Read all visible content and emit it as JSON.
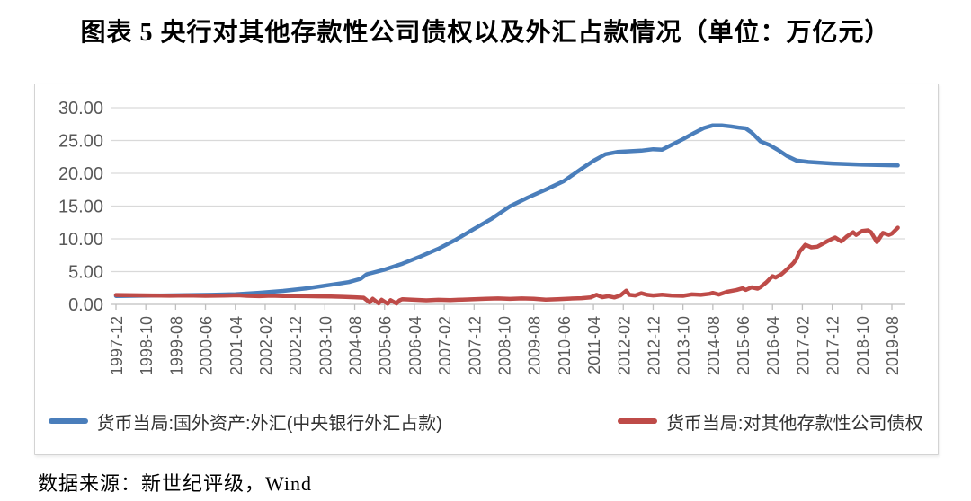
{
  "title": "图表 5  央行对其他存款性公司债权以及外汇占款情况（单位：万亿元）",
  "source_text": "数据来源：新世纪评级，Wind",
  "chart_data": {
    "type": "line",
    "title": "图表 5  央行对其他存款性公司债权以及外汇占款情况（单位：万亿元）",
    "unit": "万亿元",
    "ylim": [
      0,
      30
    ],
    "ytick_step": 5,
    "ytick_labels": [
      "0.00",
      "5.00",
      "10.00",
      "15.00",
      "20.00",
      "25.00",
      "30.00"
    ],
    "xtick_labels": [
      "1997-12",
      "1998-10",
      "1999-08",
      "2000-06",
      "2001-04",
      "2002-02",
      "2002-12",
      "2003-10",
      "2004-08",
      "2005-06",
      "2006-04",
      "2007-02",
      "2007-12",
      "2008-10",
      "2009-08",
      "2010-06",
      "2011-04",
      "2012-02",
      "2012-12",
      "2013-10",
      "2014-08",
      "2015-06",
      "2016-04",
      "2017-02",
      "2017-12",
      "2018-10",
      "2019-08"
    ],
    "xtick_month_interval": 10,
    "x_axis_note": "points are [months since 1997-12, value in trillion yuan]",
    "grid": "horizontal",
    "legend_position": "bottom",
    "colors": {
      "fx_blue": "#4a7ebb",
      "claims_red": "#be4b48",
      "grid": "#d9d9d9",
      "axis": "#bfbfbf",
      "tick_label": "#595959"
    },
    "series": [
      {
        "name": "货币当局:国外资产:外汇(中央银行外汇占款)",
        "color_key": "fx_blue",
        "points_month_value": [
          [
            0,
            1.28
          ],
          [
            8,
            1.31
          ],
          [
            16,
            1.36
          ],
          [
            24,
            1.41
          ],
          [
            32,
            1.45
          ],
          [
            40,
            1.55
          ],
          [
            48,
            1.77
          ],
          [
            56,
            2.05
          ],
          [
            64,
            2.45
          ],
          [
            72,
            2.98
          ],
          [
            78,
            3.4
          ],
          [
            82,
            3.9
          ],
          [
            84,
            4.59
          ],
          [
            90,
            5.3
          ],
          [
            96,
            6.21
          ],
          [
            102,
            7.3
          ],
          [
            108,
            8.48
          ],
          [
            114,
            9.9
          ],
          [
            120,
            11.52
          ],
          [
            126,
            13.1
          ],
          [
            132,
            14.96
          ],
          [
            138,
            16.3
          ],
          [
            144,
            17.51
          ],
          [
            150,
            18.8
          ],
          [
            156,
            20.68
          ],
          [
            160,
            21.9
          ],
          [
            164,
            22.9
          ],
          [
            168,
            23.24
          ],
          [
            172,
            23.35
          ],
          [
            176,
            23.45
          ],
          [
            180,
            23.67
          ],
          [
            183,
            23.6
          ],
          [
            186,
            24.3
          ],
          [
            190,
            25.2
          ],
          [
            194,
            26.2
          ],
          [
            197,
            26.9
          ],
          [
            200,
            27.3
          ],
          [
            203,
            27.3
          ],
          [
            206,
            27.15
          ],
          [
            209,
            26.95
          ],
          [
            211,
            26.85
          ],
          [
            213,
            26.2
          ],
          [
            216,
            24.85
          ],
          [
            219,
            24.3
          ],
          [
            222,
            23.5
          ],
          [
            225,
            22.6
          ],
          [
            228,
            21.94
          ],
          [
            232,
            21.72
          ],
          [
            236,
            21.6
          ],
          [
            240,
            21.5
          ],
          [
            245,
            21.4
          ],
          [
            250,
            21.32
          ],
          [
            255,
            21.26
          ],
          [
            262,
            21.2
          ]
        ]
      },
      {
        "name": "货币当局:对其他存款性公司债权",
        "color_key": "claims_red",
        "points_month_value": [
          [
            0,
            1.42
          ],
          [
            6,
            1.38
          ],
          [
            12,
            1.35
          ],
          [
            18,
            1.32
          ],
          [
            24,
            1.35
          ],
          [
            30,
            1.3
          ],
          [
            36,
            1.33
          ],
          [
            41,
            1.38
          ],
          [
            44,
            1.3
          ],
          [
            48,
            1.25
          ],
          [
            52,
            1.32
          ],
          [
            56,
            1.28
          ],
          [
            60,
            1.26
          ],
          [
            64,
            1.24
          ],
          [
            68,
            1.22
          ],
          [
            72,
            1.2
          ],
          [
            76,
            1.15
          ],
          [
            80,
            1.08
          ],
          [
            83,
            1.02
          ],
          [
            85,
            0.3
          ],
          [
            86,
            0.85
          ],
          [
            88,
            0.15
          ],
          [
            89,
            0.7
          ],
          [
            91,
            0.1
          ],
          [
            92,
            0.65
          ],
          [
            94,
            0.12
          ],
          [
            95,
            0.6
          ],
          [
            96,
            0.8
          ],
          [
            100,
            0.7
          ],
          [
            104,
            0.62
          ],
          [
            108,
            0.7
          ],
          [
            112,
            0.66
          ],
          [
            116,
            0.72
          ],
          [
            120,
            0.79
          ],
          [
            124,
            0.85
          ],
          [
            128,
            0.9
          ],
          [
            132,
            0.84
          ],
          [
            136,
            0.9
          ],
          [
            140,
            0.86
          ],
          [
            144,
            0.72
          ],
          [
            148,
            0.8
          ],
          [
            152,
            0.88
          ],
          [
            156,
            0.94
          ],
          [
            159,
            1.05
          ],
          [
            161,
            1.45
          ],
          [
            163,
            1.1
          ],
          [
            165,
            1.25
          ],
          [
            167,
            1.05
          ],
          [
            169,
            1.35
          ],
          [
            171,
            2.1
          ],
          [
            172,
            1.45
          ],
          [
            174,
            1.35
          ],
          [
            176,
            1.7
          ],
          [
            178,
            1.45
          ],
          [
            180,
            1.35
          ],
          [
            183,
            1.48
          ],
          [
            186,
            1.35
          ],
          [
            190,
            1.3
          ],
          [
            193,
            1.52
          ],
          [
            196,
            1.45
          ],
          [
            199,
            1.62
          ],
          [
            200,
            1.75
          ],
          [
            202,
            1.5
          ],
          [
            205,
            1.95
          ],
          [
            208,
            2.2
          ],
          [
            210,
            2.45
          ],
          [
            211,
            2.2
          ],
          [
            213,
            2.6
          ],
          [
            215,
            2.4
          ],
          [
            216,
            2.66
          ],
          [
            218,
            3.4
          ],
          [
            220,
            4.3
          ],
          [
            221,
            4.1
          ],
          [
            223,
            4.6
          ],
          [
            225,
            5.4
          ],
          [
            227,
            6.3
          ],
          [
            228,
            6.9
          ],
          [
            229,
            8.0
          ],
          [
            231,
            9.1
          ],
          [
            233,
            8.7
          ],
          [
            235,
            8.8
          ],
          [
            237,
            9.3
          ],
          [
            239,
            9.8
          ],
          [
            241,
            10.2
          ],
          [
            243,
            9.6
          ],
          [
            245,
            10.4
          ],
          [
            247,
            11.0
          ],
          [
            248,
            10.6
          ],
          [
            250,
            11.2
          ],
          [
            252,
            11.3
          ],
          [
            253,
            11.0
          ],
          [
            255,
            9.5
          ],
          [
            257,
            10.9
          ],
          [
            259,
            10.6
          ],
          [
            260,
            10.8
          ],
          [
            262,
            11.7
          ]
        ]
      }
    ]
  }
}
